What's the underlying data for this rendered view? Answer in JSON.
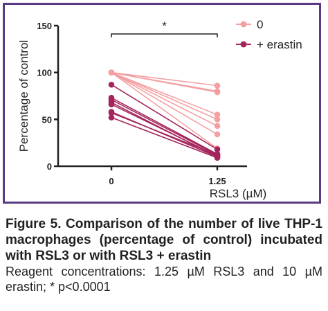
{
  "colors": {
    "frame": "#5a3a82",
    "series_control": "#f4a0a3",
    "series_erastin": "#a3255b",
    "axis": "#231f20"
  },
  "chart_data": {
    "type": "line",
    "title": "",
    "xlabel": "RSL3 (µM)",
    "ylabel": "Percentage of control",
    "categories": [
      "0",
      "1.25"
    ],
    "ylim": [
      0,
      150
    ],
    "yticks": [
      0,
      50,
      100,
      150
    ],
    "grid": false,
    "legend_position": "top-right",
    "significance": {
      "between": [
        "0",
        "1.25"
      ],
      "label": "*"
    },
    "series": [
      {
        "name": "0",
        "color": "#f4a0a3",
        "pairs": [
          [
            100,
            86
          ],
          [
            100,
            80
          ],
          [
            100,
            79
          ],
          [
            100,
            55
          ],
          [
            100,
            50
          ],
          [
            100,
            43
          ],
          [
            100,
            34
          ],
          [
            100,
            19
          ]
        ]
      },
      {
        "name": "+ erastin",
        "color": "#a3255b",
        "pairs": [
          [
            87,
            18
          ],
          [
            73,
            13
          ],
          [
            71,
            12
          ],
          [
            68,
            10
          ],
          [
            66,
            11
          ],
          [
            58,
            10
          ],
          [
            57,
            12
          ],
          [
            52,
            9
          ]
        ]
      }
    ]
  },
  "caption": {
    "title": "Figure 5. Comparison of the number of live THP-1 macrophages (percentage of control) incubated with RSL3 or with RSL3 + erastin",
    "note": "Reagent concentrations: 1.25 µM RSL3 and 10 µM erastin; * p<0.0001"
  }
}
